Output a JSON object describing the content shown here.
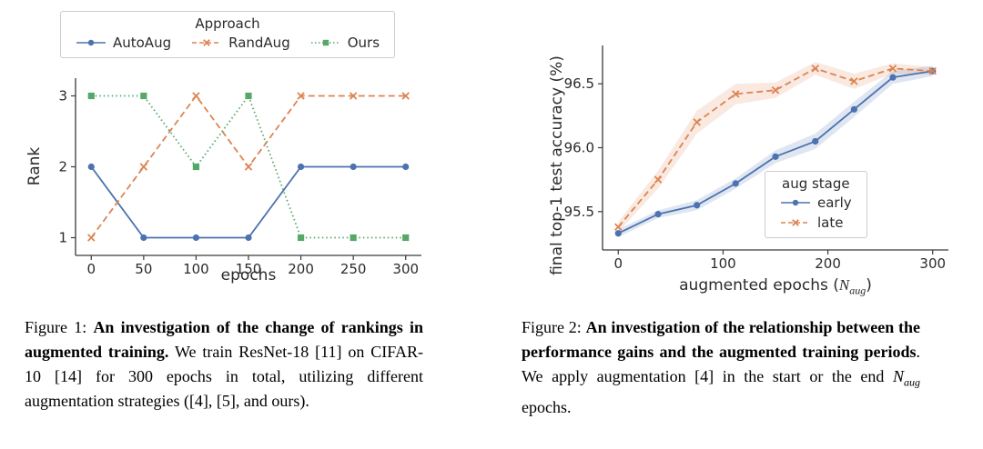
{
  "figure1": {
    "caption": {
      "label": "Figure 1: ",
      "bold": "An investigation of the change of rankings in augmented training.",
      "text": " We train ResNet-18 [11] on CIFAR-10 [14] for 300 epochs in total, utilizing different augmentation strategies ([4], [5], and ours)."
    }
  },
  "figure2": {
    "xlabel_prefix": "augmented epochs (",
    "xlabel_var": "N",
    "xlabel_sub": "aug",
    "xlabel_suffix": ")",
    "caption": {
      "label": "Figure 2: ",
      "bold": "An investigation of the relationship between the performance gains and the augmented training periods",
      "text": ". We apply augmentation [4] in the start or the end ",
      "math_var": "N",
      "math_sub": "aug",
      "text2": " epochs."
    }
  },
  "chart_data": [
    {
      "type": "line",
      "title": "",
      "xlabel": "epochs",
      "ylabel": "Rank",
      "legend_title": "Approach",
      "legend_position": "top-outside",
      "grid": false,
      "x": [
        0,
        50,
        100,
        150,
        200,
        250,
        300
      ],
      "xlim": [
        -15,
        315
      ],
      "ylim": [
        0.75,
        3.25
      ],
      "xticks": [
        "0",
        "50",
        "100",
        "150",
        "200",
        "250",
        "300"
      ],
      "yticks": [
        "1",
        "2",
        "3"
      ],
      "series": [
        {
          "name": "AutoAug",
          "values": [
            2,
            1,
            1,
            1,
            2,
            2,
            2
          ],
          "color": "#4C72B0",
          "marker": "circle",
          "dash": "solid"
        },
        {
          "name": "RandAug",
          "values": [
            1,
            2,
            3,
            2,
            3,
            3,
            3
          ],
          "color": "#DD8452",
          "marker": "x",
          "dash": "dashed"
        },
        {
          "name": "Ours",
          "values": [
            3,
            3,
            2,
            3,
            1,
            1,
            1
          ],
          "color": "#55A868",
          "marker": "square",
          "dash": "dotted"
        }
      ]
    },
    {
      "type": "line",
      "title": "",
      "xlabel": "augmented epochs (N_aug)",
      "ylabel": "final top-1 test accuracy (%)",
      "legend_title": "aug stage",
      "legend_position": "right-inside",
      "grid": false,
      "x": [
        0,
        38,
        75,
        112,
        150,
        188,
        225,
        262,
        300
      ],
      "xlim": [
        -15,
        315
      ],
      "ylim": [
        95.2,
        96.8
      ],
      "xticks": [
        "0",
        "100",
        "200",
        "300"
      ],
      "yticks": [
        "95.5",
        "96.0",
        "96.5"
      ],
      "series": [
        {
          "name": "early",
          "values": [
            95.33,
            95.48,
            95.55,
            95.72,
            95.93,
            96.05,
            96.3,
            96.55,
            96.6
          ],
          "band": [
            0.03,
            0.03,
            0.04,
            0.04,
            0.05,
            0.06,
            0.06,
            0.05,
            0.04
          ],
          "color": "#4C72B0",
          "marker": "circle",
          "dash": "solid"
        },
        {
          "name": "late",
          "values": [
            95.38,
            95.75,
            96.2,
            96.42,
            96.45,
            96.62,
            96.52,
            96.62,
            96.6
          ],
          "band": [
            0.04,
            0.07,
            0.09,
            0.08,
            0.06,
            0.05,
            0.06,
            0.04,
            0.03
          ],
          "color": "#DD8452",
          "marker": "x",
          "dash": "dashed"
        }
      ]
    }
  ]
}
